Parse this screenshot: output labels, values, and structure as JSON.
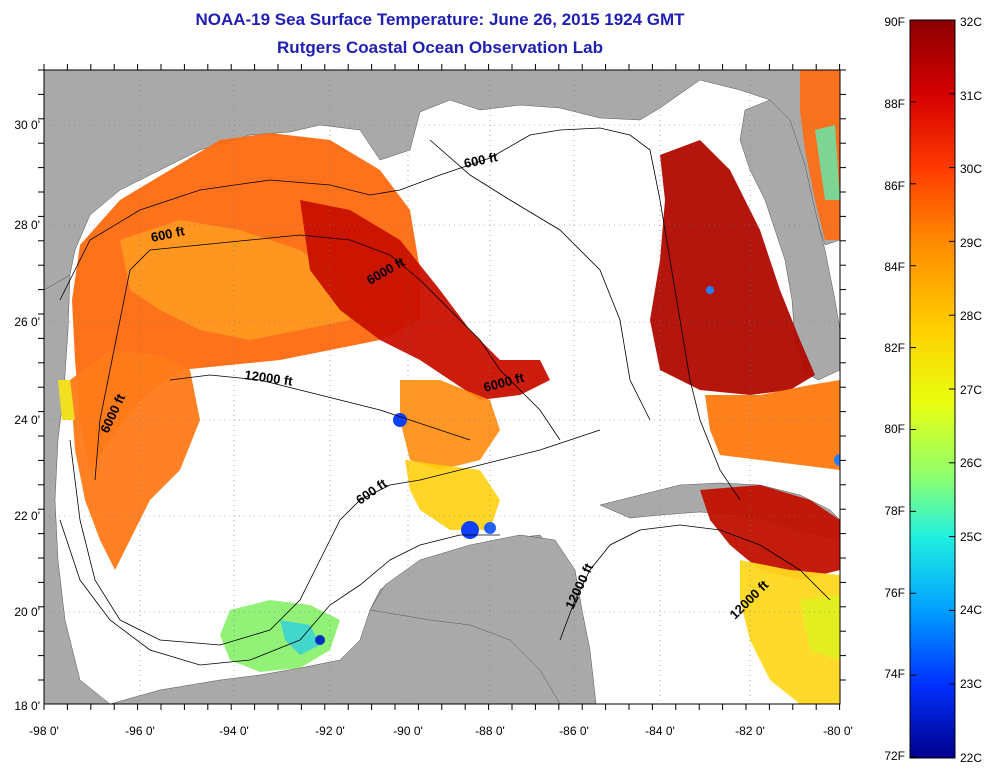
{
  "header": {
    "title": "NOAA-19 Sea Surface Temperature:  June 26, 2015 1924 GMT",
    "subtitle": "Rutgers Coastal Ocean Observation Lab"
  },
  "map": {
    "lon_labels": [
      "-98 0'",
      "-96 0'",
      "-94 0'",
      "-92 0'",
      "-90 0'",
      "-88 0'",
      "-86 0'",
      "-84 0'",
      "-82 0'",
      "-80 0'"
    ],
    "lat_labels": [
      "30 0'",
      "28 0'",
      "26 0'",
      "24 0'",
      "22 0'",
      "20 0'",
      "18 0'"
    ],
    "contour_labels": [
      {
        "text": "600 ft"
      },
      {
        "text": "600 ft"
      },
      {
        "text": "600 ft"
      },
      {
        "text": "6000 ft"
      },
      {
        "text": "6000 ft"
      },
      {
        "text": "6000 ft"
      },
      {
        "text": "12000 ft"
      },
      {
        "text": "12000 ft"
      },
      {
        "text": "12000 ft"
      }
    ]
  },
  "colorbar": {
    "fahrenheit": [
      "90F",
      "88F",
      "86F",
      "84F",
      "82F",
      "80F",
      "78F",
      "76F",
      "74F",
      "72F"
    ],
    "celsius": [
      "32C",
      "31C",
      "30C",
      "29C",
      "28C",
      "27C",
      "26C",
      "25C",
      "24C",
      "23C",
      "22C"
    ]
  },
  "colors": {
    "land": "#a9a9a9",
    "title": "#1f1fb4",
    "colormap": [
      "#8b0000",
      "#d40000",
      "#ff3a00",
      "#ff8a00",
      "#ffd000",
      "#e8ff10",
      "#8cff70",
      "#20f0e0",
      "#00a0ff",
      "#0030ff",
      "#00008b"
    ]
  }
}
